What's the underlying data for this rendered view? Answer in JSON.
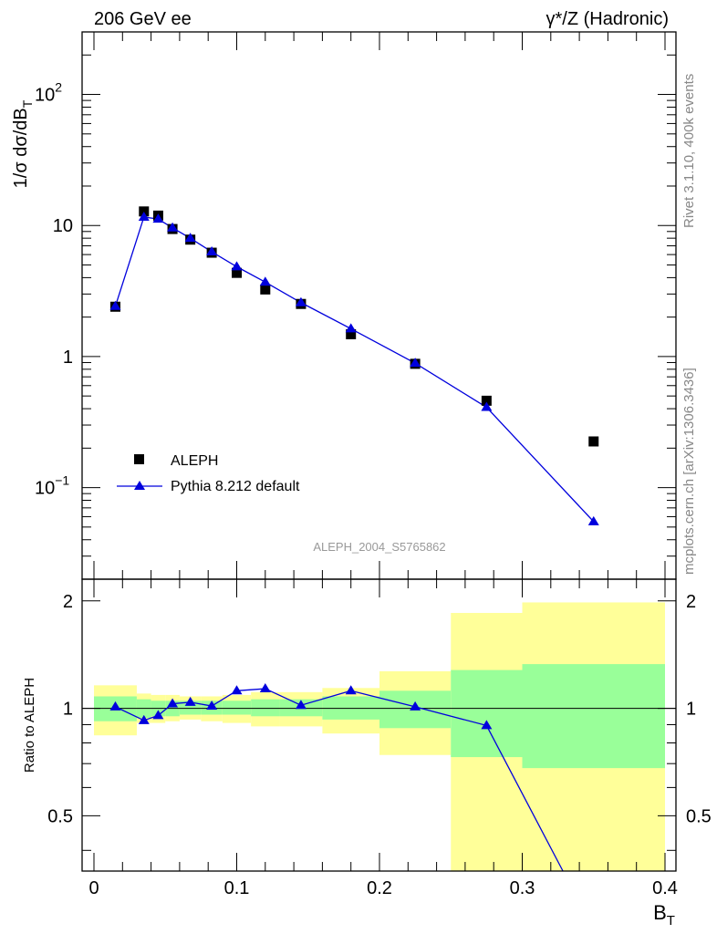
{
  "header": {
    "left_title": "206 GeV ee",
    "right_title": "γ*/Z (Hadronic)"
  },
  "side_labels": {
    "rivet": "Rivet 3.1.10,  400k events",
    "mcplots": "mcplots.cern.ch [arXiv:1306.3436]"
  },
  "analysis_id": "ALEPH_2004_S5765862",
  "colors": {
    "mc": "#0000dd",
    "data": "#000000",
    "band_inner": "#99ff99",
    "band_outer": "#ffff99"
  },
  "chart_data": [
    {
      "type": "scatter",
      "scale": "log",
      "xlim": [
        0,
        0.4
      ],
      "ylim": [
        0.02,
        300
      ],
      "ylabel": "1/σ  dσ/dB_T",
      "legend": {
        "placement": "bottom-left",
        "entries": [
          "ALEPH",
          "Pythia 8.212 default"
        ]
      },
      "xticks": [
        "0",
        "0.1",
        "0.2",
        "0.3",
        "0.4"
      ],
      "yticks": [
        {
          "value": 0.1,
          "label": "10",
          "exp": "−1"
        },
        {
          "value": 1,
          "label": "1",
          "exp": ""
        },
        {
          "value": 10,
          "label": "10",
          "exp": ""
        },
        {
          "value": 100,
          "label": "10",
          "exp": "2"
        }
      ],
      "series": [
        {
          "name": "ALEPH",
          "x": [
            0.015,
            0.035,
            0.045,
            0.055,
            0.0675,
            0.0825,
            0.1,
            0.12,
            0.145,
            0.18,
            0.225,
            0.275,
            0.35
          ],
          "y": [
            2.4,
            12.8,
            11.9,
            9.4,
            7.8,
            6.2,
            4.35,
            3.25,
            2.52,
            1.48,
            0.88,
            0.46,
            0.225
          ]
        },
        {
          "name": "Pythia 8.212 default",
          "x": [
            0.015,
            0.035,
            0.045,
            0.055,
            0.0675,
            0.0825,
            0.1,
            0.12,
            0.145,
            0.18,
            0.225,
            0.275,
            0.35
          ],
          "y": [
            2.42,
            11.6,
            11.2,
            9.6,
            8.0,
            6.3,
            4.85,
            3.7,
            2.58,
            1.63,
            0.89,
            0.41,
            0.055
          ]
        }
      ]
    },
    {
      "type": "line",
      "xlim": [
        0,
        0.4
      ],
      "ylim": [
        0.35,
        2.3
      ],
      "xlabel": "B_T",
      "ylabel": "Ratio to ALEPH",
      "xticks": [
        "0",
        "0.1",
        "0.2",
        "0.3",
        "0.4"
      ],
      "yticks": [
        "0.5",
        "1",
        "2"
      ],
      "reference_line": 1,
      "bands": [
        {
          "x0": 0,
          "x1": 0.03,
          "inner": [
            0.92,
            1.08
          ],
          "outer": [
            0.84,
            1.16
          ]
        },
        {
          "x0": 0.03,
          "x1": 0.04,
          "inner": [
            0.94,
            1.06
          ],
          "outer": [
            0.91,
            1.1
          ]
        },
        {
          "x0": 0.04,
          "x1": 0.05,
          "inner": [
            0.95,
            1.05
          ],
          "outer": [
            0.91,
            1.09
          ]
        },
        {
          "x0": 0.05,
          "x1": 0.06,
          "inner": [
            0.95,
            1.05
          ],
          "outer": [
            0.92,
            1.09
          ]
        },
        {
          "x0": 0.06,
          "x1": 0.075,
          "inner": [
            0.96,
            1.05
          ],
          "outer": [
            0.93,
            1.08
          ]
        },
        {
          "x0": 0.075,
          "x1": 0.09,
          "inner": [
            0.96,
            1.05
          ],
          "outer": [
            0.92,
            1.08
          ]
        },
        {
          "x0": 0.09,
          "x1": 0.11,
          "inner": [
            0.96,
            1.05
          ],
          "outer": [
            0.91,
            1.09
          ]
        },
        {
          "x0": 0.11,
          "x1": 0.13,
          "inner": [
            0.95,
            1.06
          ],
          "outer": [
            0.89,
            1.11
          ]
        },
        {
          "x0": 0.13,
          "x1": 0.16,
          "inner": [
            0.95,
            1.06
          ],
          "outer": [
            0.89,
            1.11
          ]
        },
        {
          "x0": 0.16,
          "x1": 0.2,
          "inner": [
            0.93,
            1.08
          ],
          "outer": [
            0.85,
            1.14
          ]
        },
        {
          "x0": 0.2,
          "x1": 0.25,
          "inner": [
            0.88,
            1.12
          ],
          "outer": [
            0.74,
            1.27
          ]
        },
        {
          "x0": 0.25,
          "x1": 0.3,
          "inner": [
            0.73,
            1.28
          ],
          "outer": [
            0.3,
            1.85
          ]
        },
        {
          "x0": 0.3,
          "x1": 0.4,
          "inner": [
            0.68,
            1.33
          ],
          "outer": [
            0.3,
            1.98
          ]
        }
      ],
      "series": [
        {
          "name": "Pythia 8.212 default",
          "x": [
            0.015,
            0.035,
            0.045,
            0.055,
            0.0675,
            0.0825,
            0.1,
            0.12,
            0.145,
            0.18,
            0.225,
            0.275,
            0.35
          ],
          "y": [
            1.01,
            0.925,
            0.955,
            1.03,
            1.04,
            1.015,
            1.12,
            1.135,
            1.02,
            1.12,
            1.01,
            0.895,
            0.24
          ]
        }
      ]
    }
  ]
}
